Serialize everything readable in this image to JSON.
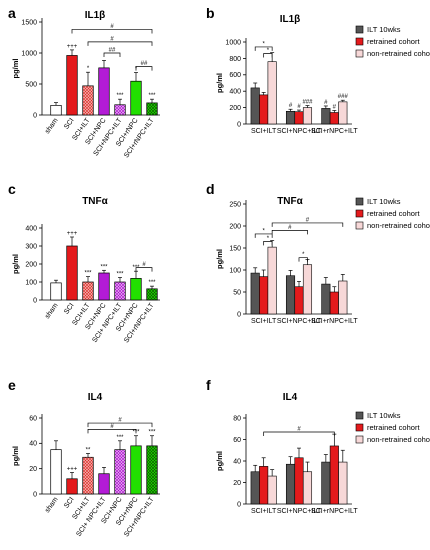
{
  "colors": {
    "white": "#ffffff",
    "red": "#e41a1c",
    "magenta": "#b31bd6",
    "green": "#22e000",
    "dark": "#555555",
    "pink": "#f7d8d8"
  },
  "chart_data": [
    {
      "id": "a",
      "type": "bar",
      "panel_label": "a",
      "title": "IL1β",
      "ylabel": "pg/ml",
      "ylim": [
        0,
        1500
      ],
      "yticks": [
        0,
        500,
        1000,
        1500
      ],
      "categories": [
        "sham",
        "SCI",
        "SCI+ILT",
        "SCI+NPC",
        "SCI+NPC+ILT",
        "SCI+rNPC",
        "SCI+rNPC+ILT"
      ],
      "values": [
        155,
        960,
        470,
        760,
        165,
        545,
        195
      ],
      "errors": [
        45,
        90,
        220,
        120,
        90,
        140,
        60
      ],
      "fills": [
        "white",
        "red",
        "red",
        "magenta",
        "magenta",
        "green",
        "green"
      ],
      "hatched": [
        false,
        false,
        true,
        false,
        true,
        false,
        true
      ],
      "annotations": [
        "",
        "+++",
        "*",
        "",
        "***",
        "*",
        "***"
      ],
      "brackets": [
        {
          "from": 1,
          "to": 6,
          "level": 1380,
          "label": "#"
        },
        {
          "from": 2,
          "to": 6,
          "level": 1180,
          "label": ""
        },
        {
          "from": 3,
          "to": 4,
          "level": 1000,
          "label": "##"
        },
        {
          "from": 5,
          "to": 6,
          "level": 780,
          "label": "##"
        }
      ],
      "extra_labels": [
        {
          "between": [
            2,
            5
          ],
          "level": 1180,
          "label": "#"
        }
      ]
    },
    {
      "id": "b",
      "type": "bar",
      "panel_label": "b",
      "title": "IL1β",
      "ylabel": "pg/ml",
      "ylim": [
        0,
        1000
      ],
      "yticks": [
        0,
        200,
        400,
        600,
        800,
        1000
      ],
      "categories": [
        "SCI+ILT",
        "SCI+NPC+ILT",
        "SCI+rNPC+ILT"
      ],
      "series": [
        {
          "name": "ILT 10wks",
          "values": [
            440,
            155,
            190
          ],
          "errors": [
            60,
            25,
            30
          ]
        },
        {
          "name": "retrained cohort",
          "values": [
            355,
            150,
            140
          ],
          "errors": [
            30,
            20,
            25
          ]
        },
        {
          "name": "non-retrained cohort",
          "values": [
            760,
            200,
            270
          ],
          "errors": [
            110,
            25,
            20
          ]
        }
      ],
      "annotations": [
        [
          "",
          "",
          ""
        ],
        [
          "#",
          "#",
          "###"
        ],
        [
          "#",
          "#",
          "###"
        ]
      ],
      "brackets": [
        {
          "from": [
            0,
            0
          ],
          "to": [
            0,
            2
          ],
          "level": 940,
          "label": "*"
        },
        {
          "from": [
            0,
            1
          ],
          "to": [
            0,
            2
          ],
          "level": 860,
          "label": "*"
        }
      ]
    },
    {
      "id": "c",
      "type": "bar",
      "panel_label": "c",
      "title": "TNFα",
      "ylabel": "pg/ml",
      "ylim": [
        0,
        400
      ],
      "yticks": [
        0,
        100,
        200,
        300,
        400
      ],
      "categories": [
        "sham",
        "SCI",
        "SCI+ILT",
        "SCI+NPC",
        "SCI+ NPC+ILT",
        "SCI+rNPC",
        "SCI+rNPC+ILT"
      ],
      "values": [
        95,
        300,
        100,
        150,
        100,
        120,
        62
      ],
      "errors": [
        15,
        50,
        30,
        15,
        25,
        40,
        15
      ],
      "fills": [
        "white",
        "red",
        "red",
        "magenta",
        "magenta",
        "green",
        "green"
      ],
      "hatched": [
        false,
        false,
        true,
        false,
        true,
        false,
        true
      ],
      "annotations": [
        "",
        "+++",
        "***",
        "***",
        "***",
        "***",
        "***"
      ],
      "brackets": [
        {
          "from": 5,
          "to": 6,
          "level": 180,
          "label": "#"
        }
      ]
    },
    {
      "id": "d",
      "type": "bar",
      "panel_label": "d",
      "title": "TNFα",
      "ylabel": "pg/ml",
      "ylim": [
        0,
        250
      ],
      "yticks": [
        0,
        50,
        100,
        150,
        200,
        250
      ],
      "categories": [
        "SCI+ILT",
        "SCI+NPC+ILT",
        "SCI+rNPC+ILT"
      ],
      "series": [
        {
          "name": "ILT 10wks",
          "values": [
            93,
            87,
            68
          ],
          "errors": [
            12,
            12,
            15
          ]
        },
        {
          "name": "retrained cohort",
          "values": [
            85,
            62,
            50
          ],
          "errors": [
            15,
            12,
            12
          ]
        },
        {
          "name": "non-retrained cohort",
          "values": [
            152,
            112,
            75
          ],
          "errors": [
            15,
            12,
            15
          ]
        }
      ],
      "brackets": [
        {
          "from": [
            0,
            0
          ],
          "to": [
            0,
            2
          ],
          "level": 182,
          "label": "*"
        },
        {
          "from": [
            0,
            1
          ],
          "to": [
            0,
            2
          ],
          "level": 165,
          "label": "*"
        },
        {
          "from": [
            0,
            2
          ],
          "to": [
            1,
            2
          ],
          "level": 190,
          "label": "#"
        },
        {
          "from": [
            0,
            2
          ],
          "to": [
            2,
            2
          ],
          "level": 207,
          "label": "#"
        },
        {
          "from": [
            1,
            1
          ],
          "to": [
            1,
            2
          ],
          "level": 128,
          "label": "*"
        }
      ]
    },
    {
      "id": "e",
      "type": "bar",
      "panel_label": "e",
      "title": "IL4",
      "ylabel": "pg/ml",
      "ylim": [
        0,
        60
      ],
      "yticks": [
        0,
        20,
        40,
        60
      ],
      "categories": [
        "sham",
        "SCI",
        "SCI+ILT",
        "SCI+ NPC+ILT",
        "SCI+NPC",
        "SCI+rNPC",
        "SCI+rNPC+ILT"
      ],
      "values": [
        35,
        12,
        29,
        16,
        35,
        38,
        38
      ],
      "errors": [
        7,
        5,
        3,
        5,
        7,
        8,
        8
      ],
      "fills": [
        "white",
        "red",
        "red",
        "magenta",
        "magenta",
        "green",
        "green"
      ],
      "hatched": [
        false,
        false,
        true,
        false,
        true,
        false,
        true
      ],
      "annotations": [
        "",
        "+++",
        "**",
        "",
        "***",
        "***",
        "***"
      ],
      "brackets": [
        {
          "from": 2,
          "to": 6,
          "level": 56,
          "label": "#"
        },
        {
          "from": 2,
          "to": 5,
          "level": 51,
          "label": "#"
        }
      ]
    },
    {
      "id": "f",
      "type": "bar",
      "panel_label": "f",
      "title": "IL4",
      "ylabel": "pg/ml",
      "ylim": [
        0,
        80
      ],
      "yticks": [
        0,
        20,
        40,
        60,
        80
      ],
      "categories": [
        "SCI+ILT",
        "SCI+NPC+ILT",
        "SCI+rNPC+ILT"
      ],
      "series": [
        {
          "name": "ILT 10wks",
          "values": [
            30,
            37,
            39
          ],
          "errors": [
            6,
            7,
            7
          ]
        },
        {
          "name": "retrained cohort",
          "values": [
            35,
            43,
            54
          ],
          "errors": [
            8,
            9,
            11
          ]
        },
        {
          "name": "non-retrained cohort",
          "values": [
            26,
            30,
            39
          ],
          "errors": [
            6,
            9,
            11
          ]
        }
      ],
      "brackets": [
        {
          "from": [
            0,
            1
          ],
          "to": [
            2,
            1
          ],
          "level": 67,
          "label": "#"
        }
      ]
    }
  ],
  "legend_colors": [
    "#555555",
    "#e41a1c",
    "#f7d8d8"
  ]
}
